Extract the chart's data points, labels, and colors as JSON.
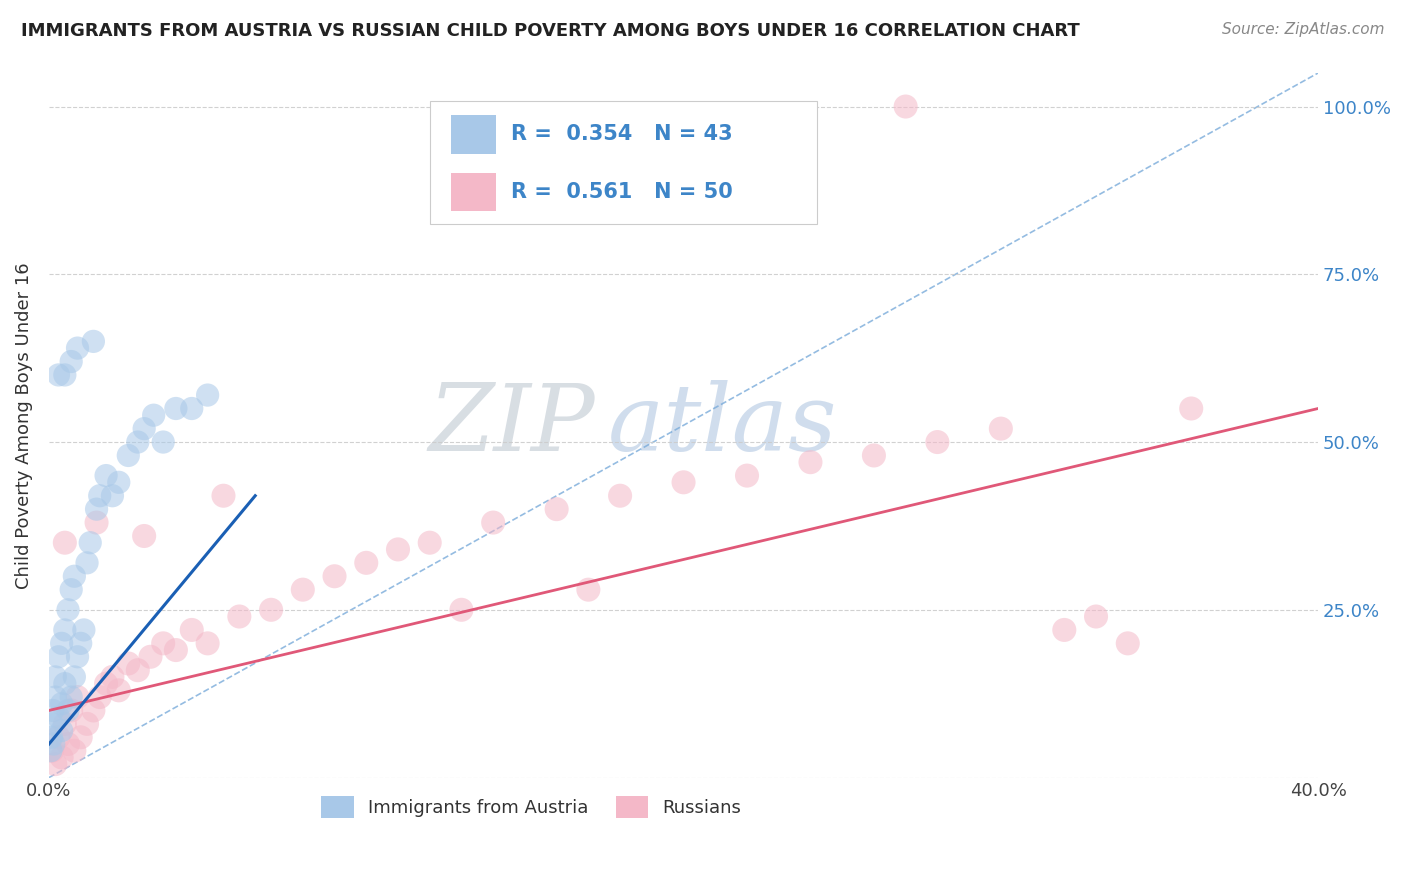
{
  "title": "IMMIGRANTS FROM AUSTRIA VS RUSSIAN CHILD POVERTY AMONG BOYS UNDER 16 CORRELATION CHART",
  "source": "Source: ZipAtlas.com",
  "ylabel": "Child Poverty Among Boys Under 16",
  "xlim": [
    0.0,
    0.4
  ],
  "ylim": [
    0.0,
    1.05
  ],
  "xtick_positions": [
    0.0,
    0.1,
    0.2,
    0.3,
    0.4
  ],
  "xticklabels": [
    "0.0%",
    "",
    "",
    "",
    "40.0%"
  ],
  "ytick_positions": [
    0.0,
    0.25,
    0.5,
    0.75,
    1.0
  ],
  "yticklabels_right": [
    "",
    "25.0%",
    "50.0%",
    "75.0%",
    "100.0%"
  ],
  "austria_R": 0.354,
  "austria_N": 43,
  "russia_R": 0.561,
  "russia_N": 50,
  "austria_color": "#a8c8e8",
  "austria_line_color": "#1a5fb4",
  "austria_dash_color": "#7aabda",
  "russia_color": "#f4b8c8",
  "russia_line_color": "#e05878",
  "watermark_zip": "ZIP",
  "watermark_atlas": "atlas",
  "legend_label_austria": "Immigrants from Austria",
  "legend_label_russia": "Russians",
  "background_color": "#ffffff",
  "grid_color": "#cccccc",
  "label_color": "#3d85c8",
  "title_color": "#222222",
  "source_color": "#888888",
  "austria_x": [
    0.0006,
    0.0008,
    0.001,
    0.0012,
    0.0015,
    0.002,
    0.002,
    0.003,
    0.003,
    0.004,
    0.004,
    0.004,
    0.005,
    0.005,
    0.006,
    0.006,
    0.007,
    0.007,
    0.008,
    0.008,
    0.009,
    0.01,
    0.011,
    0.012,
    0.013,
    0.015,
    0.016,
    0.018,
    0.02,
    0.022,
    0.025,
    0.028,
    0.03,
    0.033,
    0.036,
    0.04,
    0.045,
    0.05,
    0.003,
    0.005,
    0.007,
    0.009,
    0.014
  ],
  "austria_y": [
    0.04,
    0.06,
    0.08,
    0.1,
    0.05,
    0.12,
    0.15,
    0.09,
    0.18,
    0.07,
    0.11,
    0.2,
    0.14,
    0.22,
    0.1,
    0.25,
    0.12,
    0.28,
    0.15,
    0.3,
    0.18,
    0.2,
    0.22,
    0.32,
    0.35,
    0.4,
    0.42,
    0.45,
    0.42,
    0.44,
    0.48,
    0.5,
    0.52,
    0.54,
    0.5,
    0.55,
    0.55,
    0.57,
    0.6,
    0.6,
    0.62,
    0.64,
    0.65
  ],
  "russia_x": [
    0.001,
    0.002,
    0.003,
    0.004,
    0.005,
    0.006,
    0.007,
    0.008,
    0.009,
    0.01,
    0.012,
    0.014,
    0.016,
    0.018,
    0.02,
    0.022,
    0.025,
    0.028,
    0.032,
    0.036,
    0.04,
    0.045,
    0.05,
    0.06,
    0.07,
    0.08,
    0.09,
    0.1,
    0.11,
    0.12,
    0.14,
    0.16,
    0.18,
    0.2,
    0.22,
    0.24,
    0.26,
    0.28,
    0.3,
    0.32,
    0.34,
    0.36,
    0.005,
    0.015,
    0.03,
    0.055,
    0.13,
    0.17,
    0.27,
    0.33
  ],
  "russia_y": [
    0.04,
    0.02,
    0.06,
    0.03,
    0.08,
    0.05,
    0.1,
    0.04,
    0.12,
    0.06,
    0.08,
    0.1,
    0.12,
    0.14,
    0.15,
    0.13,
    0.17,
    0.16,
    0.18,
    0.2,
    0.19,
    0.22,
    0.2,
    0.24,
    0.25,
    0.28,
    0.3,
    0.32,
    0.34,
    0.35,
    0.38,
    0.4,
    0.42,
    0.44,
    0.45,
    0.47,
    0.48,
    0.5,
    0.52,
    0.22,
    0.2,
    0.55,
    0.35,
    0.38,
    0.36,
    0.42,
    0.25,
    0.28,
    1.0,
    0.24
  ],
  "russia_line_x0": 0.0,
  "russia_line_y0": 0.1,
  "russia_line_x1": 0.4,
  "russia_line_y1": 0.55,
  "austria_line_x0": 0.0,
  "austria_line_y0": 0.05,
  "austria_line_x1": 0.065,
  "austria_line_y1": 0.42,
  "dash_line_x0": 0.0,
  "dash_line_y0": 0.0,
  "dash_line_x1": 0.4,
  "dash_line_y1": 1.05
}
